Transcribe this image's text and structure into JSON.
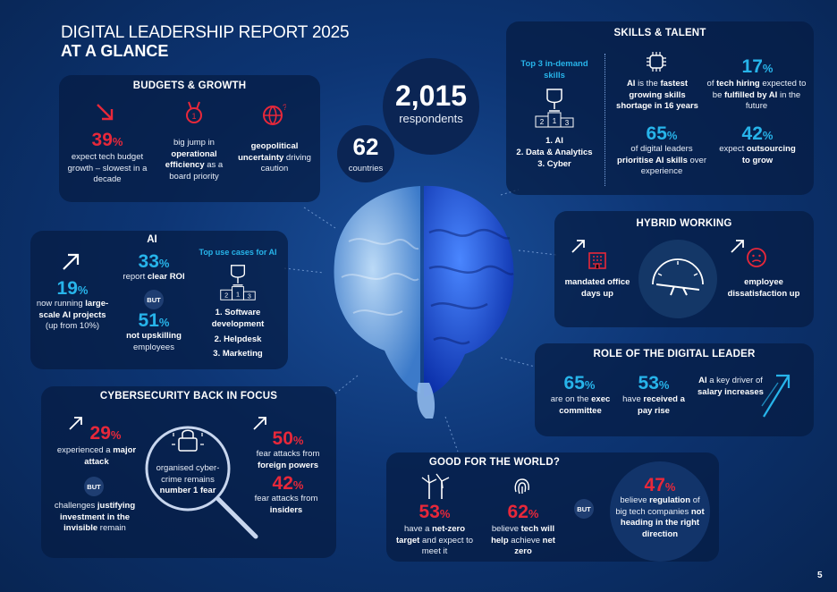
{
  "header": {
    "title": "DIGITAL LEADERSHIP REPORT 2025",
    "subtitle": "AT A GLANCE"
  },
  "center": {
    "respondents_value": "2,015",
    "respondents_label": "respondents",
    "countries_value": "62",
    "countries_label": "countries"
  },
  "budgets": {
    "title": "BUDGETS & GROWTH",
    "stat_value": "39",
    "stat_unit": "%",
    "stat_text": "expect tech budget growth – slowest in a decade",
    "item2_a": "big jump in",
    "item2_b": "operational efficiency",
    "item2_c": "as a board priority",
    "item3_a": "geopolitical uncertainty",
    "item3_b": "driving caution"
  },
  "skills": {
    "title": "SKILLS & TALENT",
    "top3_label": "Top 3 in-demand skills",
    "list": [
      "1. AI",
      "2. Data & Analytics",
      "3. Cyber"
    ],
    "ai_a": "AI",
    "ai_b": "is the",
    "ai_c": "fastest growing skills shortage in 16 years",
    "s17_value": "17",
    "s17_unit": "%",
    "s17_a": "of",
    "s17_b": "tech hiring",
    "s17_c": "expected to be",
    "s17_d": "fulfilled by AI",
    "s17_e": "in the future",
    "s65_value": "65",
    "s65_unit": "%",
    "s65_a": "of digital leaders",
    "s65_b": "prioritise AI skills",
    "s65_c": "over experience",
    "s42_value": "42",
    "s42_unit": "%",
    "s42_a": "expect",
    "s42_b": "outsourcing to grow"
  },
  "ai": {
    "title": "AI",
    "s19_value": "19",
    "s19_unit": "%",
    "s19_a": "now running",
    "s19_b": "large-scale AI projects",
    "s19_c": "(up from 10%)",
    "s33_value": "33",
    "s33_unit": "%",
    "s33_a": "report",
    "s33_b": "clear ROI",
    "but": "BUT",
    "s51_value": "51",
    "s51_unit": "%",
    "s51_b": "not upskilling",
    "s51_c": "employees",
    "usecases_title": "Top use cases for AI",
    "usecases": [
      "1. Software development",
      "2. Helpdesk",
      "3. Marketing"
    ]
  },
  "hybrid": {
    "title": "HYBRID WORKING",
    "left": "mandated office days up",
    "right": "employee dissatisfaction up"
  },
  "cyber": {
    "title": "CYBERSECURITY BACK IN FOCUS",
    "s29_value": "29",
    "s29_unit": "%",
    "s29_a": "experienced a",
    "s29_b": "major attack",
    "but": "BUT",
    "chal_a": "challenges",
    "chal_b": "justifying investment in the invisible",
    "chal_c": "remain",
    "mid_a": "organised cyber-crime remains",
    "mid_b": "number 1 fear",
    "s50_value": "50",
    "s50_unit": "%",
    "s50_a": "fear attacks from",
    "s50_b": "foreign powers",
    "s42_value": "42",
    "s42_unit": "%",
    "s42_a": "fear attacks from",
    "s42_b": "insiders"
  },
  "role": {
    "title": "ROLE OF THE DIGITAL LEADER",
    "s65_value": "65",
    "s65_unit": "%",
    "s65_a": "are on the",
    "s65_b": "exec committee",
    "s53_value": "53",
    "s53_unit": "%",
    "s53_a": "have",
    "s53_b": "received a pay rise",
    "ai_a": "AI",
    "ai_b": "a key driver of",
    "ai_c": "salary increases"
  },
  "world": {
    "title": "GOOD FOR THE WORLD?",
    "s53_value": "53",
    "s53_unit": "%",
    "s53_a": "have a",
    "s53_b": "net-zero target",
    "s53_c": "and expect to meet it",
    "s62_value": "62",
    "s62_unit": "%",
    "s62_a": "believe",
    "s62_b": "tech will help",
    "s62_c": "achieve",
    "s62_d": "net zero",
    "but": "BUT",
    "s47_value": "47",
    "s47_unit": "%",
    "s47_a": "believe",
    "s47_b": "regulation",
    "s47_c": "of big tech companies",
    "s47_d": "not heading in the right direction"
  },
  "page_number": "5",
  "colors": {
    "red": "#e8283a",
    "cyan": "#27b4ea",
    "panel": "#061c42",
    "background": "#0d3574"
  },
  "icons": [
    "arrow-up-right-icon",
    "medal-icon",
    "globe-question-icon",
    "trophy-podium-icon",
    "brain-chip-icon",
    "building-icon",
    "gauge-icon",
    "sad-face-icon",
    "padlock-magnifier-icon",
    "wind-turbines-icon",
    "fingerprint-icon",
    "rising-arrow-icon"
  ]
}
